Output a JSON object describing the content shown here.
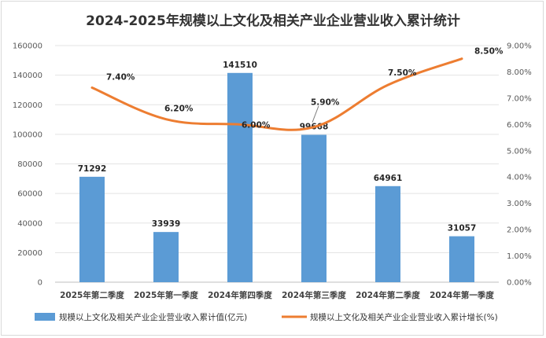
{
  "chart_data": {
    "type": "bar+line",
    "title": "2024-2025年规模以上文化及相关产业企业营业收入累计统计",
    "categories": [
      "2025年第二季度",
      "2025年第一季度",
      "2024年第四季度",
      "2024年第三季度",
      "2024年第二季度",
      "2024年第一季度"
    ],
    "series": [
      {
        "name": "规模以上文化及相关产业企业营业收入累计值(亿元)",
        "type": "bar",
        "axis": "left",
        "values": [
          71292,
          33939,
          141510,
          99668,
          64961,
          31057
        ],
        "labels": [
          "71292",
          "33939",
          "141510",
          "99668",
          "64961",
          "31057"
        ]
      },
      {
        "name": "规模以上文化及相关产业企业营业收入累计增长(%)",
        "type": "line",
        "axis": "right",
        "values": [
          7.4,
          6.2,
          6.0,
          5.9,
          7.5,
          8.5
        ],
        "labels": [
          "7.40%",
          "6.20%",
          "6.00%",
          "5.90%",
          "7.50%",
          "8.50%"
        ]
      }
    ],
    "y_left": {
      "min": 0,
      "max": 160000,
      "step": 20000,
      "ticks": [
        "0",
        "20000",
        "40000",
        "60000",
        "80000",
        "100000",
        "120000",
        "140000",
        "160000"
      ]
    },
    "y_right": {
      "min": 0,
      "max": 9,
      "step": 1,
      "ticks": [
        "0.00%",
        "1.00%",
        "2.00%",
        "3.00%",
        "4.00%",
        "5.00%",
        "6.00%",
        "7.00%",
        "8.00%",
        "9.00%"
      ]
    },
    "grid": true,
    "legend": "bottom",
    "colors": {
      "bar": "#5b9bd5",
      "line": "#ed7d31"
    }
  }
}
